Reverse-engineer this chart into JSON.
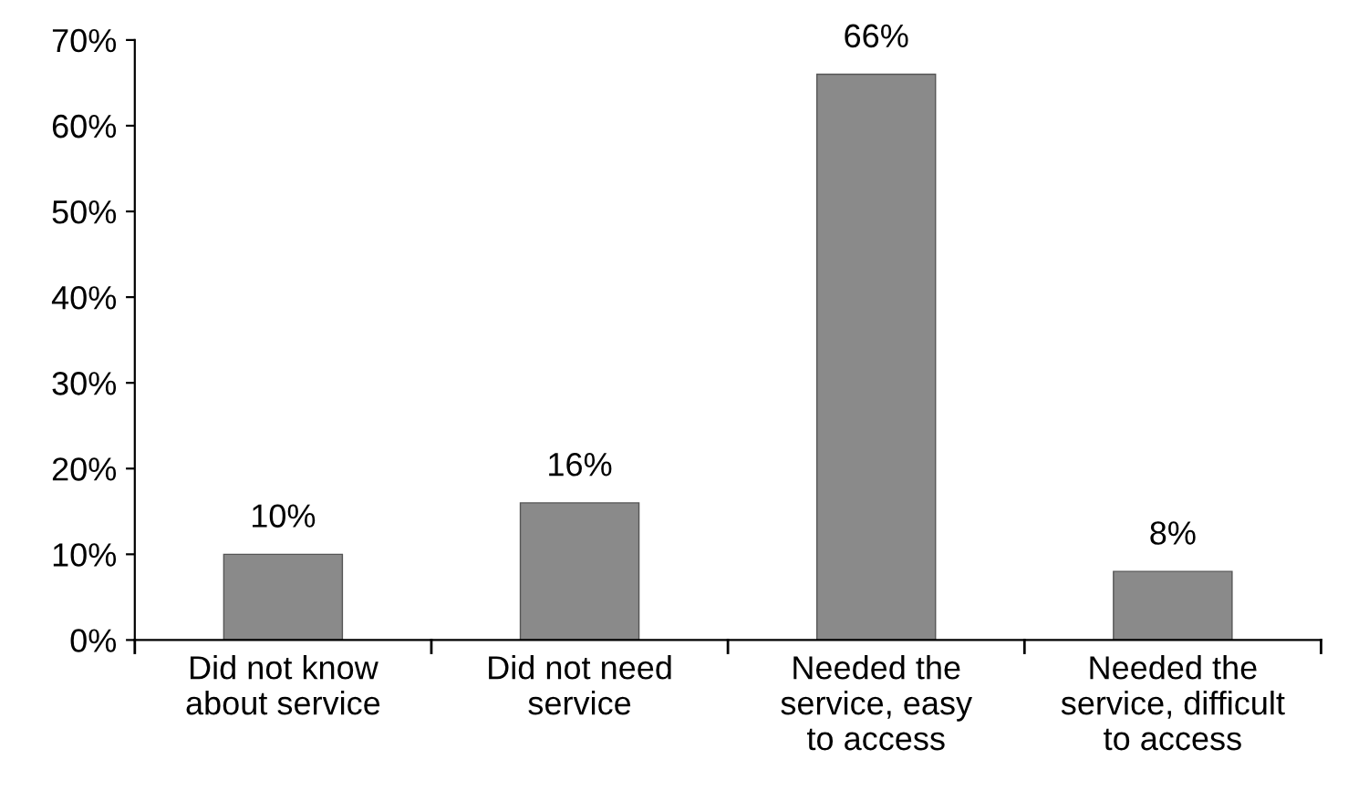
{
  "chart_data": {
    "type": "bar",
    "categories": [
      "Did not know\nabout service",
      "Did not need\nservice",
      "Needed the\nservice, easy\nto access",
      "Needed the\nservice, difficult\nto access"
    ],
    "values": [
      10,
      16,
      66,
      8
    ],
    "value_labels": [
      "10%",
      "16%",
      "66%",
      "8%"
    ],
    "color": "#8a8a8a",
    "ylim": [
      0,
      70
    ],
    "yticks": [
      {
        "value": 0,
        "label": "0%"
      },
      {
        "value": 10,
        "label": "10%"
      },
      {
        "value": 20,
        "label": "20%"
      },
      {
        "value": 30,
        "label": "30%"
      },
      {
        "value": 40,
        "label": "40%"
      },
      {
        "value": 50,
        "label": "50%"
      },
      {
        "value": 60,
        "label": "60%"
      },
      {
        "value": 70,
        "label": "70%"
      }
    ],
    "grid": false,
    "legend": false
  }
}
